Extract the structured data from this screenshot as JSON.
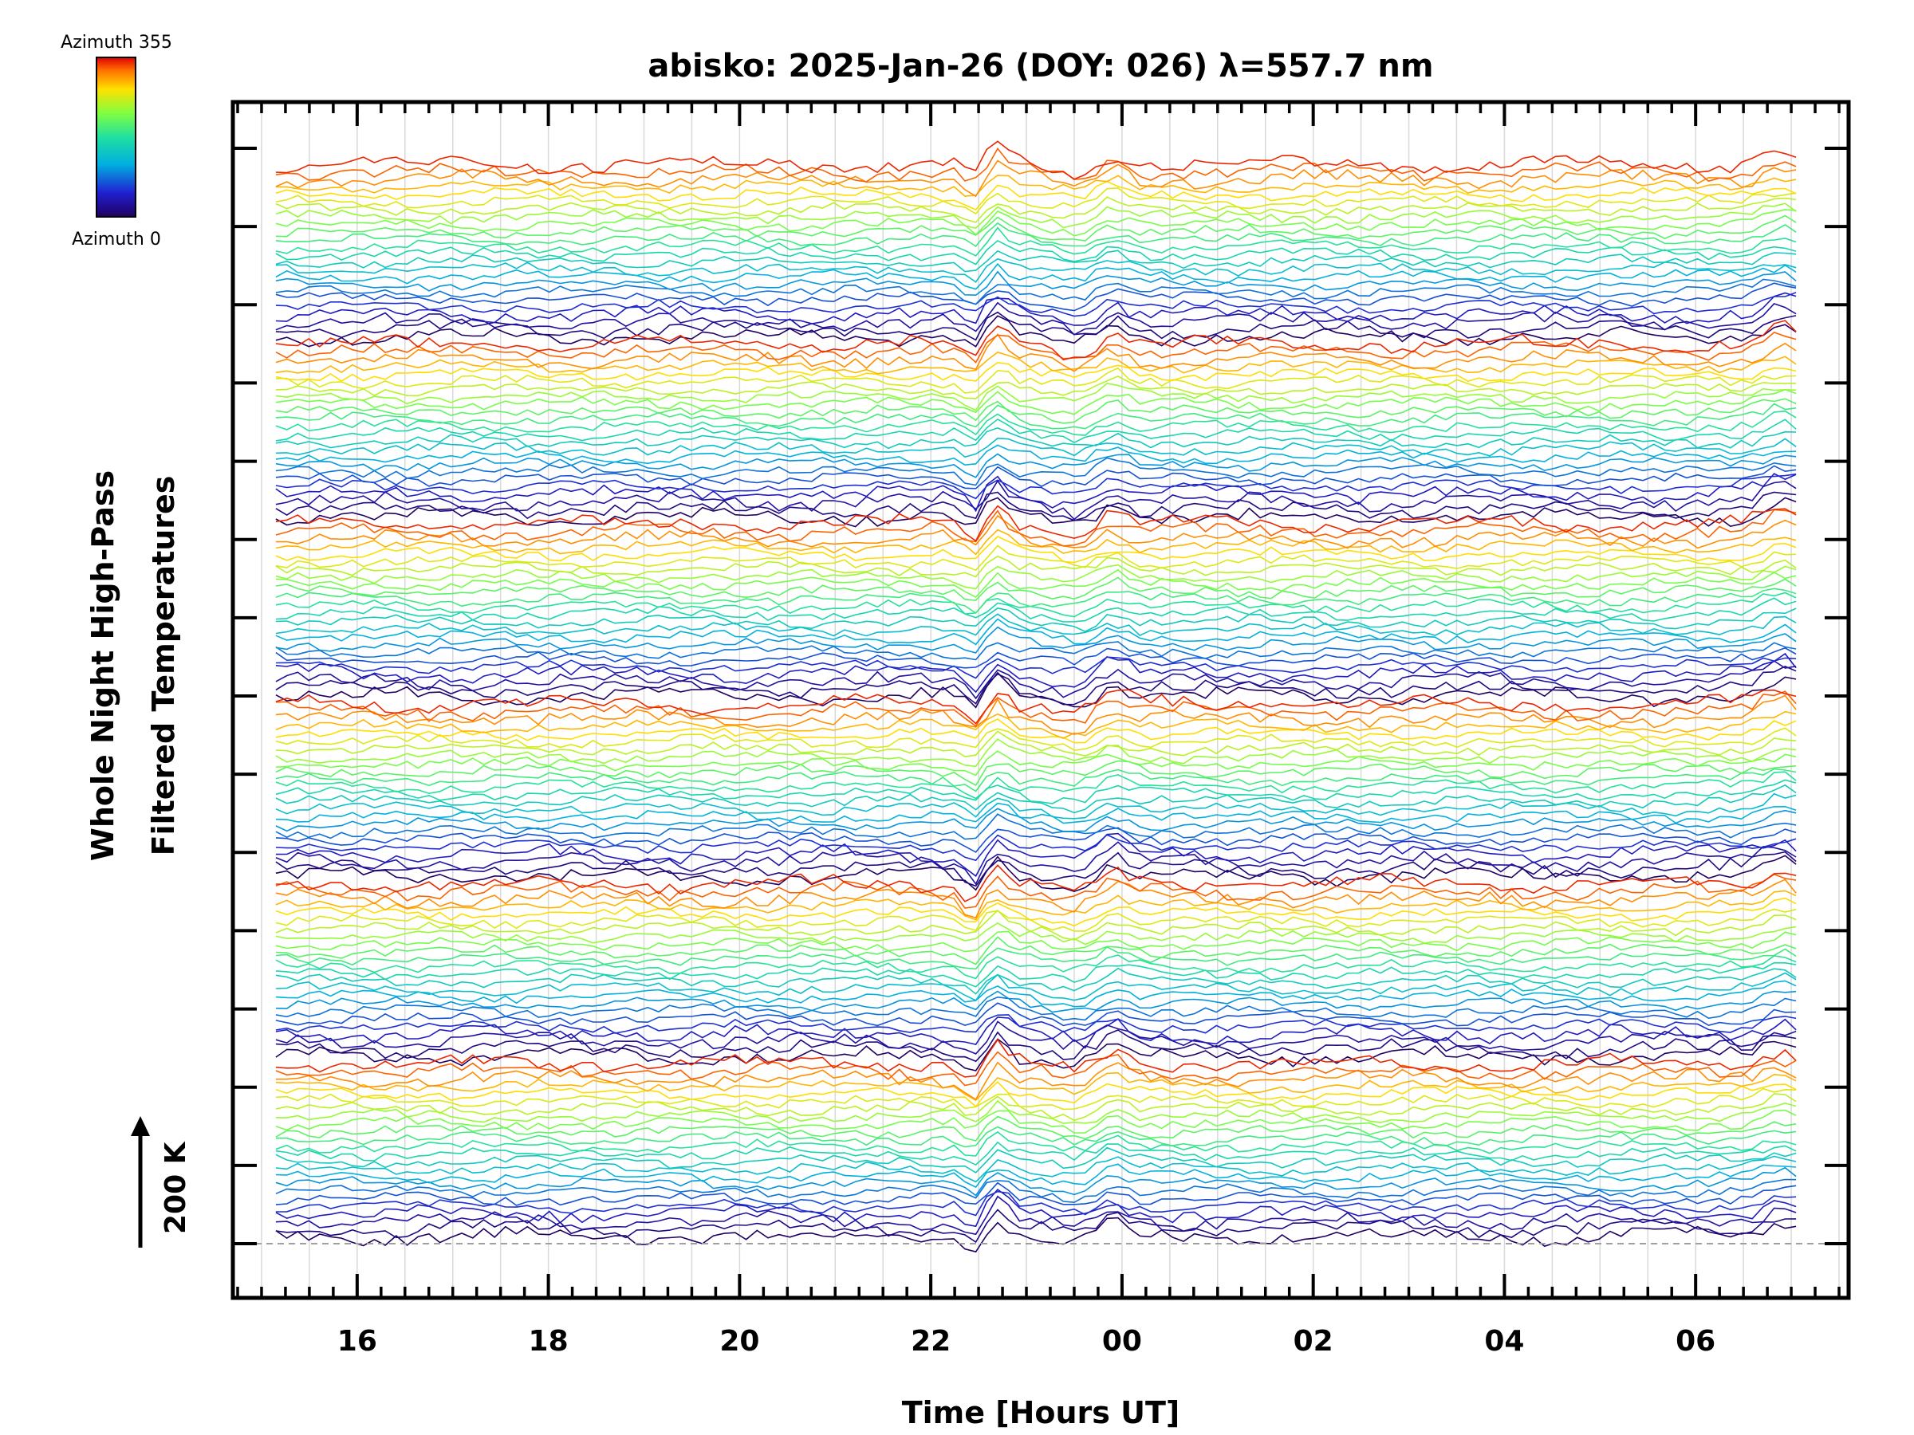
{
  "chart_data": {
    "type": "line",
    "title": "abisko: 2025-Jan-26 (DOY: 026) λ=557.7 nm",
    "xlabel": "Time [Hours UT]",
    "ylabel_line1": "Whole Night High-Pass",
    "ylabel_line2": "Filtered Temperatures",
    "x_tick_labels": [
      "16",
      "18",
      "20",
      "22",
      "00",
      "02",
      "04",
      "06"
    ],
    "x_tick_hours": [
      16,
      18,
      20,
      22,
      24,
      26,
      28,
      30
    ],
    "xlim_hours": [
      14.7,
      31.6
    ],
    "x_start_hour": 15.15,
    "x_end_hour": 31.05,
    "scale_bar_label": "200 K",
    "colorbar": {
      "top_label": "Azimuth 355",
      "bottom_label": "Azimuth 0",
      "azimuth_min": 0,
      "azimuth_max": 355
    },
    "grid": true,
    "num_panels": 6,
    "azimuth_samples": [
      0,
      15,
      30,
      45,
      60,
      75,
      90,
      105,
      120,
      135,
      150,
      165,
      180,
      195,
      210,
      225,
      240,
      255,
      270,
      285,
      300,
      315,
      330,
      345
    ],
    "colors": {
      "axes": "#000000",
      "grid": "#d9d9d9",
      "baseline": "#a0a0a0"
    }
  }
}
